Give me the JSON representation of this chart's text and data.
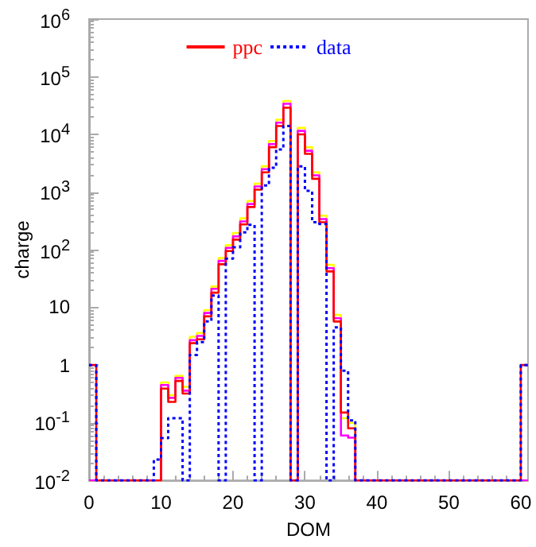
{
  "chart_data": {
    "type": "histogram",
    "xlabel": "DOM",
    "ylabel": "charge",
    "log": "y",
    "grid": false,
    "legend": "top",
    "bins": [
      0,
      1,
      2,
      3,
      4,
      5,
      6,
      7,
      8,
      9,
      10,
      11,
      12,
      13,
      14,
      15,
      16,
      17,
      18,
      19,
      20,
      21,
      22,
      23,
      24,
      25,
      26,
      27,
      28,
      29,
      30,
      31,
      32,
      33,
      34,
      35,
      36,
      37,
      38,
      39,
      40,
      41,
      42,
      43,
      44,
      45,
      46,
      47,
      48,
      49,
      50,
      51,
      52,
      53,
      54,
      55,
      56,
      57,
      58,
      59,
      60,
      61
    ],
    "xlim": [
      0,
      61
    ],
    "xticks": [
      0,
      10,
      20,
      30,
      40,
      50,
      60
    ],
    "ylim": [
      0.01,
      1000000
    ],
    "yticks": [
      {
        "value": 0.01,
        "label": "10$^{-2}$"
      },
      {
        "value": 0.1,
        "label": "10$^{-1}$"
      },
      1,
      10,
      {
        "value": 100,
        "label": "10$^{2}$"
      },
      {
        "value": 1000,
        "label": "10$^{3}$"
      },
      {
        "value": 10000,
        "label": "10$^{4}$"
      },
      {
        "value": 100000,
        "label": "10$^{5}$"
      },
      {
        "value": 1000000,
        "label": "10$^{6}$"
      }
    ],
    "series": [
      {
        "name": "ppc",
        "color": "#ff0000",
        "line_style": "solid",
        "values": [
          1,
          null,
          null,
          null,
          null,
          null,
          null,
          null,
          null,
          null,
          0.39,
          0.23,
          0.53,
          0.32,
          2.4,
          2.8,
          7,
          18,
          56,
          95,
          150,
          275,
          550,
          1100,
          2200,
          6000,
          14000,
          29000,
          null,
          10000,
          4600,
          1700,
          300,
          42,
          5.7,
          0.15,
          0.08,
          null,
          null,
          null,
          null,
          null,
          null,
          null,
          null,
          null,
          null,
          null,
          null,
          null,
          null,
          null,
          null,
          null,
          null,
          null,
          null,
          null,
          null,
          null,
          1
        ]
      },
      {
        "name": "data",
        "color": "#0000ff",
        "line_style": "dotted",
        "values": [
          1,
          null,
          null,
          null,
          null,
          null,
          null,
          null,
          null,
          0.023,
          0.054,
          0.12,
          0.12,
          null,
          1.5,
          2.5,
          5.7,
          16,
          null,
          70,
          110,
          200,
          270,
          null,
          1300,
          2650,
          5500,
          14000,
          null,
          2800,
          1050,
          300,
          280,
          null,
          4.5,
          0.8,
          0.11,
          null,
          null,
          null,
          null,
          null,
          null,
          null,
          null,
          null,
          null,
          null,
          null,
          null,
          null,
          null,
          null,
          null,
          null,
          null,
          null,
          null,
          null,
          null,
          1
        ]
      },
      {
        "color": "#ffff00",
        "line_style": "solid",
        "values": [
          null,
          null,
          null,
          null,
          null,
          null,
          null,
          null,
          null,
          null,
          0.5,
          0.3,
          0.65,
          0.42,
          3.1,
          3.6,
          9,
          23,
          72,
          120,
          195,
          350,
          700,
          1400,
          2800,
          7700,
          18000,
          38000,
          null,
          13000,
          6000,
          2200,
          390,
          55,
          7.4,
          0.12,
          0.1,
          null,
          null,
          null,
          null,
          null,
          null,
          null,
          null,
          null,
          null,
          null,
          null,
          null,
          null,
          null,
          null,
          null,
          null,
          null,
          null,
          null,
          null,
          null,
          null
        ]
      },
      {
        "color": "#ff00ff",
        "line_style": "solid",
        "values": [
          null,
          null,
          null,
          null,
          null,
          null,
          null,
          null,
          null,
          null,
          0.45,
          0.27,
          0.6,
          0.36,
          2.7,
          3.2,
          8,
          21,
          64,
          108,
          170,
          310,
          620,
          1250,
          2500,
          6800,
          16000,
          34000,
          null,
          11500,
          5200,
          1950,
          340,
          48,
          6.5,
          0.06,
          0.055,
          null,
          null,
          null,
          null,
          null,
          null,
          null,
          null,
          null,
          null,
          null,
          null,
          null,
          null,
          null,
          null,
          null,
          null,
          null,
          null,
          null,
          null,
          null,
          null
        ]
      }
    ]
  }
}
